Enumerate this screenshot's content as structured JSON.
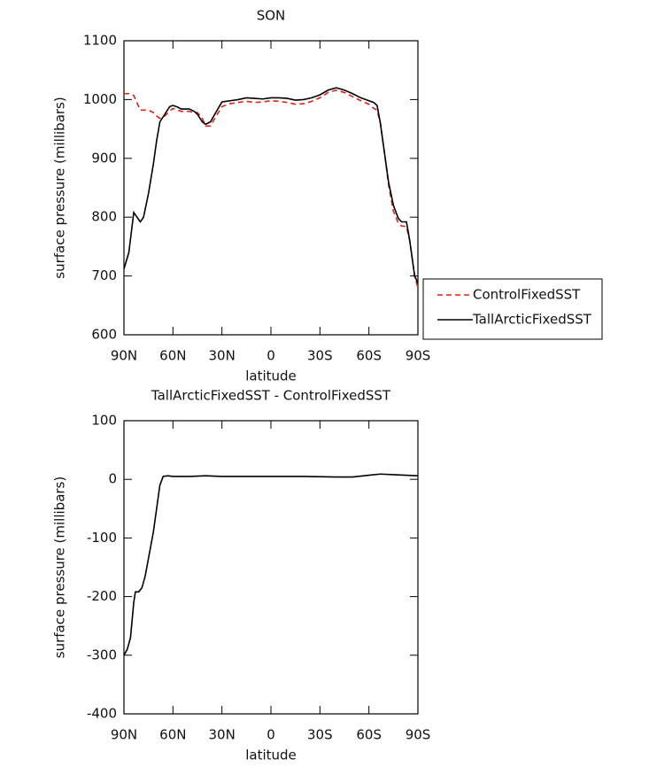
{
  "chart_data": [
    {
      "type": "line",
      "title": "SON",
      "x_label": "latitude",
      "y_label": "surface pressure (millibars)",
      "x": [
        90,
        87,
        84,
        80,
        78,
        75,
        72,
        70,
        68,
        65,
        62,
        60,
        57,
        55,
        50,
        47,
        45,
        42,
        40,
        37,
        35,
        30,
        25,
        20,
        15,
        10,
        5,
        0,
        -5,
        -10,
        -15,
        -20,
        -25,
        -30,
        -35,
        -40,
        -45,
        -50,
        -55,
        -60,
        -63,
        -65,
        -67,
        -70,
        -72,
        -75,
        -78,
        -80,
        -83,
        -85,
        -88,
        -90
      ],
      "series": [
        {
          "name": "ControlFixedSST",
          "color": "#e0201b",
          "line_style": "dashed",
          "values": [
            1010,
            1010,
            1007,
            982,
            982,
            982,
            978,
            972,
            968,
            972,
            980,
            985,
            982,
            980,
            980,
            978,
            978,
            968,
            955,
            955,
            965,
            988,
            993,
            995,
            997,
            995,
            996,
            998,
            997,
            995,
            992,
            993,
            997,
            1003,
            1012,
            1016,
            1012,
            1005,
            998,
            992,
            985,
            982,
            960,
            900,
            855,
            810,
            790,
            785,
            784,
            760,
            700,
            680
          ]
        },
        {
          "name": "TallArcticFixedSST",
          "color": "#000000",
          "line_style": "solid",
          "values": [
            712,
            740,
            808,
            792,
            800,
            840,
            890,
            930,
            962,
            975,
            988,
            990,
            987,
            984,
            984,
            980,
            975,
            962,
            958,
            962,
            972,
            996,
            998,
            1000,
            1003,
            1002,
            1001,
            1003,
            1003,
            1002,
            999,
            1000,
            1003,
            1008,
            1016,
            1020,
            1016,
            1010,
            1003,
            998,
            995,
            990,
            960,
            900,
            860,
            820,
            798,
            792,
            792,
            760,
            700,
            688
          ]
        }
      ],
      "xlim": [
        90,
        -90
      ],
      "xticks": [
        {
          "value": 90,
          "label": "90N"
        },
        {
          "value": 60,
          "label": "60N"
        },
        {
          "value": 30,
          "label": "30N"
        },
        0,
        {
          "value": -30,
          "label": "30S"
        },
        {
          "value": -60,
          "label": "60S"
        },
        {
          "value": -90,
          "label": "90S"
        }
      ],
      "ylim": [
        600,
        1100
      ],
      "yticks": [
        600,
        700,
        800,
        900,
        1000,
        1100
      ],
      "legend": "right"
    },
    {
      "type": "line",
      "title": "TallArcticFixedSST - ControlFixedSST",
      "x_label": "latitude",
      "y_label": "surface pressure (millibars)",
      "x": [
        90,
        88,
        86,
        84,
        83,
        81,
        79,
        77,
        75,
        72,
        70,
        68,
        66,
        63,
        60,
        50,
        40,
        30,
        0,
        -20,
        -40,
        -50,
        -60,
        -67,
        -75,
        -90
      ],
      "series": [
        {
          "color": "#000000",
          "line_style": "solid",
          "values": [
            -300,
            -290,
            -270,
            -210,
            -192,
            -192,
            -185,
            -165,
            -135,
            -90,
            -50,
            -10,
            5,
            6,
            5,
            5,
            6,
            5,
            5,
            5,
            4,
            4,
            7,
            9,
            8,
            6
          ]
        }
      ],
      "xlim": [
        90,
        -90
      ],
      "xticks": [
        {
          "value": 90,
          "label": "90N"
        },
        {
          "value": 60,
          "label": "60N"
        },
        {
          "value": 30,
          "label": "30N"
        },
        0,
        {
          "value": -30,
          "label": "30S"
        },
        {
          "value": -60,
          "label": "60S"
        },
        {
          "value": -90,
          "label": "90S"
        }
      ],
      "ylim": [
        -400,
        100
      ],
      "yticks": [
        -400,
        -300,
        -200,
        -100,
        0,
        100
      ]
    }
  ]
}
